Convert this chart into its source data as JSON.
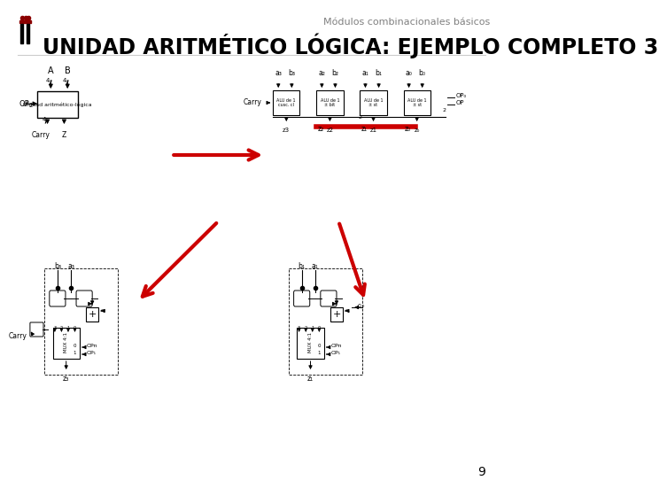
{
  "title": "UNIDAD ARITMÉTICO LÓGICA: EJEMPLO COMPLETO 3",
  "header": "Módulos combinacionales básicos",
  "page_number": "9",
  "bg_color": "#ffffff",
  "title_color": "#000000",
  "header_color": "#808080",
  "logo_crown_color": "#8B0000",
  "logo_bar_color": "#8B0000",
  "logo_legs_color": "#000000",
  "title_fontsize": 17,
  "header_fontsize": 8,
  "page_fontsize": 10,
  "arrow_color": "#cc0000",
  "line_color": "#000000",
  "highlight_color": "#cc0000",
  "diagram_color": "#000000"
}
